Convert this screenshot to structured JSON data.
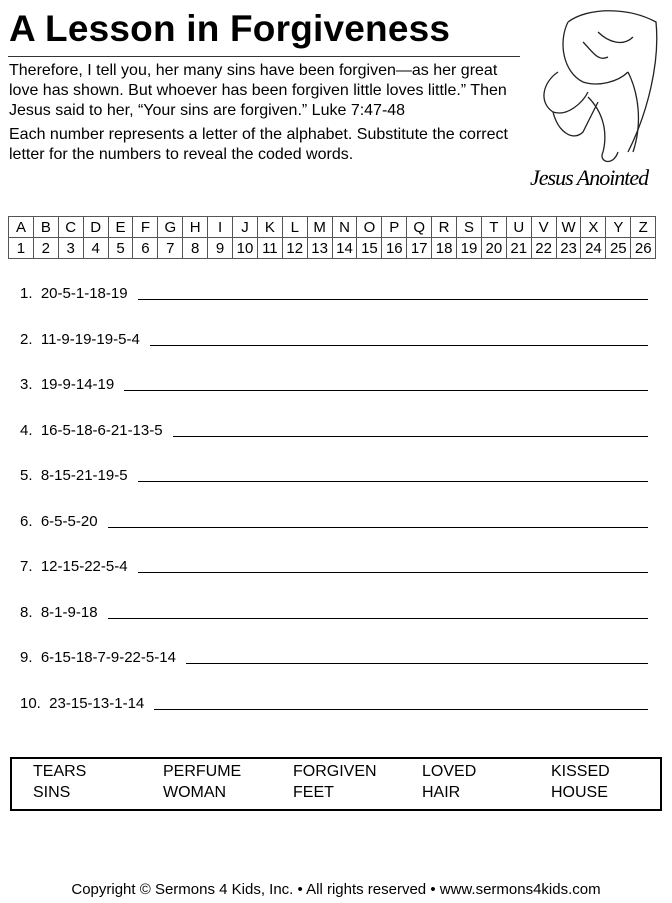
{
  "title": "A Lesson in Forgiveness",
  "verse": "Therefore, I tell you, her many sins have been forgiven—as her great love has shown. But whoever has been forgiven little loves little.” Then Jesus said to her, “Your sins are forgiven.”  Luke 7:47-48",
  "instructions": "Each number represents a letter of the alphabet.  Substitute the correct letter for the numbers to reveal the coded words.",
  "illustration_caption": "Jesus Anointed",
  "code_table": {
    "letters": [
      "A",
      "B",
      "C",
      "D",
      "E",
      "F",
      "G",
      "H",
      "I",
      "J",
      "K",
      "L",
      "M",
      "N",
      "O",
      "P",
      "Q",
      "R",
      "S",
      "T",
      "U",
      "V",
      "W",
      "X",
      "Y",
      "Z"
    ],
    "numbers": [
      "1",
      "2",
      "3",
      "4",
      "5",
      "6",
      "7",
      "8",
      "9",
      "10",
      "11",
      "12",
      "13",
      "14",
      "15",
      "16",
      "17",
      "18",
      "19",
      "20",
      "21",
      "22",
      "23",
      "24",
      "25",
      "26"
    ]
  },
  "questions": [
    "1.  20-5-1-18-19",
    "2.  11-9-19-19-5-4",
    "3.  19-9-14-19",
    "4.  16-5-18-6-21-13-5",
    "5.  8-15-21-19-5",
    "6.  6-5-5-20",
    "7.  12-15-22-5-4",
    "8.  8-1-9-18",
    "9.  6-15-18-7-9-22-5-14",
    "10.  23-15-13-1-14"
  ],
  "word_bank": [
    [
      "TEARS",
      "SINS"
    ],
    [
      "PERFUME",
      "WOMAN"
    ],
    [
      "FORGIVEN",
      "FEET"
    ],
    [
      "LOVED",
      "HAIR"
    ],
    [
      "KISSED",
      "HOUSE"
    ]
  ],
  "footer": "Copyright © Sermons 4 Kids, Inc.  •  All rights reserved  •  www.sermons4kids.com"
}
